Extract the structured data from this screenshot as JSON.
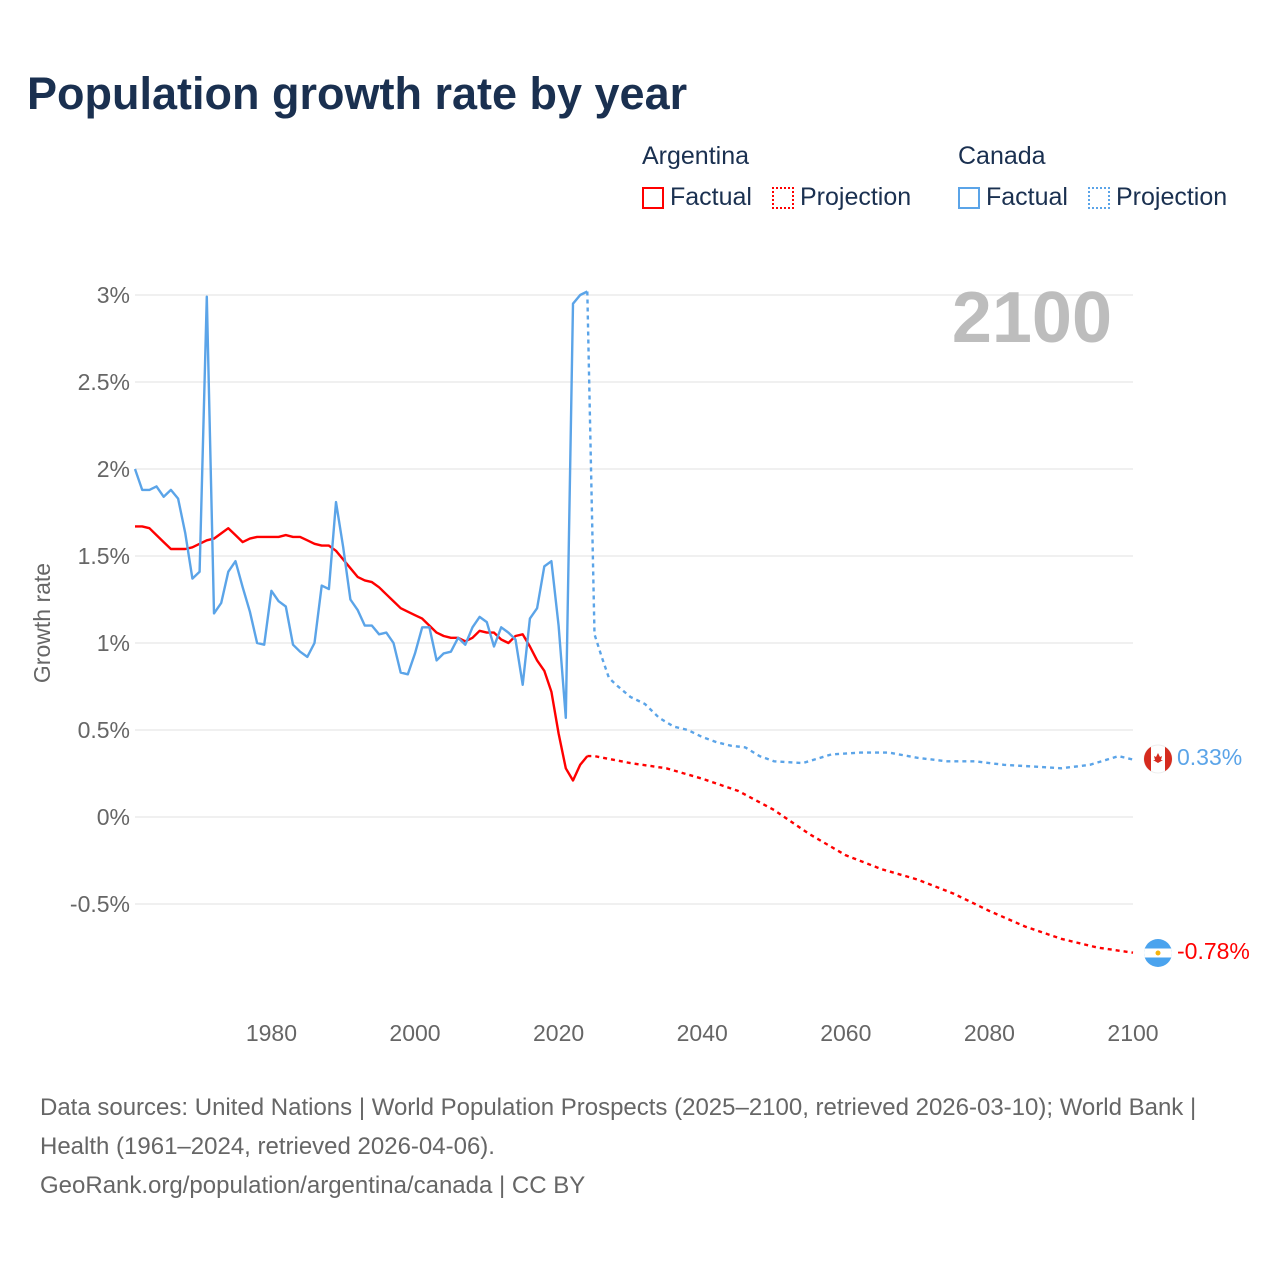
{
  "title": "Population growth rate by year",
  "legend": {
    "groups": [
      {
        "country": "Argentina",
        "factual": "Factual",
        "projection": "Projection",
        "color": "#ff0000"
      },
      {
        "country": "Canada",
        "factual": "Factual",
        "projection": "Projection",
        "color": "#5ba4e8"
      }
    ]
  },
  "year_display": "2100",
  "end_labels": {
    "canada": "0.33%",
    "argentina": "-0.78%"
  },
  "sources": {
    "line1": "Data sources: United Nations | World Population Prospects (2025–2100, retrieved 2026-03-10); World Bank | Health (1961–2024, retrieved 2026-04-06).",
    "line2": "GeoRank.org/population/argentina/canada | CC BY"
  },
  "chart_data": {
    "type": "line",
    "title": "Population growth rate by year",
    "xlabel": "",
    "ylabel": "Growth rate",
    "xlim": [
      1961,
      2100
    ],
    "ylim": [
      -1.0,
      3.0
    ],
    "xticks": [
      1980,
      2000,
      2020,
      2040,
      2060,
      2080,
      2100
    ],
    "xtick_labels": [
      "1980",
      "2000",
      "2020",
      "2040",
      "2060",
      "2080",
      "2100"
    ],
    "yticks": [
      3,
      2.5,
      2,
      1.5,
      1,
      0.5,
      0,
      -0.5
    ],
    "ytick_labels": [
      "3%",
      "2.5%",
      "2%",
      "1.5%",
      "1%",
      "0.5%",
      "0%",
      "-0.5%"
    ],
    "grid": true,
    "legend_position": "top-right",
    "series": [
      {
        "name": "Argentina Factual",
        "color": "#ff0000",
        "dashed": false,
        "x_start": 1961,
        "values": [
          1.67,
          1.67,
          1.66,
          1.62,
          1.58,
          1.54,
          1.54,
          1.54,
          1.55,
          1.57,
          1.59,
          1.6,
          1.63,
          1.66,
          1.62,
          1.58,
          1.6,
          1.61,
          1.61,
          1.61,
          1.61,
          1.62,
          1.61,
          1.61,
          1.59,
          1.57,
          1.56,
          1.56,
          1.53,
          1.48,
          1.43,
          1.38,
          1.36,
          1.35,
          1.32,
          1.28,
          1.24,
          1.2,
          1.18,
          1.16,
          1.14,
          1.1,
          1.06,
          1.04,
          1.03,
          1.03,
          1.01,
          1.03,
          1.07,
          1.06,
          1.06,
          1.02,
          1.0,
          1.04,
          1.05,
          0.98,
          0.9,
          0.84,
          0.72,
          0.48,
          0.28,
          0.21,
          0.3,
          0.35
        ]
      },
      {
        "name": "Argentina Projection",
        "color": "#ff0000",
        "dashed": true,
        "x": [
          2024,
          2025,
          2030,
          2035,
          2040,
          2045,
          2050,
          2055,
          2060,
          2065,
          2070,
          2075,
          2080,
          2085,
          2090,
          2095,
          2100
        ],
        "values": [
          0.35,
          0.35,
          0.31,
          0.28,
          0.22,
          0.15,
          0.04,
          -0.1,
          -0.22,
          -0.3,
          -0.36,
          -0.44,
          -0.54,
          -0.63,
          -0.7,
          -0.75,
          -0.78
        ]
      },
      {
        "name": "Canada Factual",
        "color": "#5ba4e8",
        "dashed": false,
        "x_start": 1961,
        "values": [
          2.0,
          1.88,
          1.88,
          1.9,
          1.84,
          1.88,
          1.83,
          1.63,
          1.37,
          1.41,
          2.99,
          1.17,
          1.23,
          1.41,
          1.47,
          1.32,
          1.18,
          1.0,
          0.99,
          1.3,
          1.24,
          1.21,
          0.99,
          0.95,
          0.92,
          1.0,
          1.33,
          1.31,
          1.81,
          1.55,
          1.25,
          1.19,
          1.1,
          1.1,
          1.05,
          1.06,
          1.0,
          0.83,
          0.82,
          0.94,
          1.09,
          1.09,
          0.9,
          0.94,
          0.95,
          1.03,
          0.99,
          1.09,
          1.15,
          1.12,
          0.98,
          1.09,
          1.06,
          1.02,
          0.76,
          1.14,
          1.2,
          1.44,
          1.47,
          1.1,
          0.57,
          2.95,
          3.0,
          3.02
        ]
      },
      {
        "name": "Canada Projection",
        "color": "#5ba4e8",
        "dashed": true,
        "x": [
          2024,
          2025,
          2026,
          2027,
          2028,
          2030,
          2032,
          2034,
          2036,
          2038,
          2040,
          2042,
          2044,
          2046,
          2048,
          2050,
          2054,
          2058,
          2062,
          2066,
          2070,
          2074,
          2078,
          2082,
          2086,
          2090,
          2094,
          2098,
          2100
        ],
        "values": [
          3.02,
          1.05,
          0.92,
          0.8,
          0.76,
          0.69,
          0.65,
          0.57,
          0.52,
          0.5,
          0.46,
          0.43,
          0.41,
          0.4,
          0.35,
          0.32,
          0.31,
          0.36,
          0.37,
          0.37,
          0.34,
          0.32,
          0.32,
          0.3,
          0.29,
          0.28,
          0.3,
          0.35,
          0.33
        ]
      }
    ]
  }
}
